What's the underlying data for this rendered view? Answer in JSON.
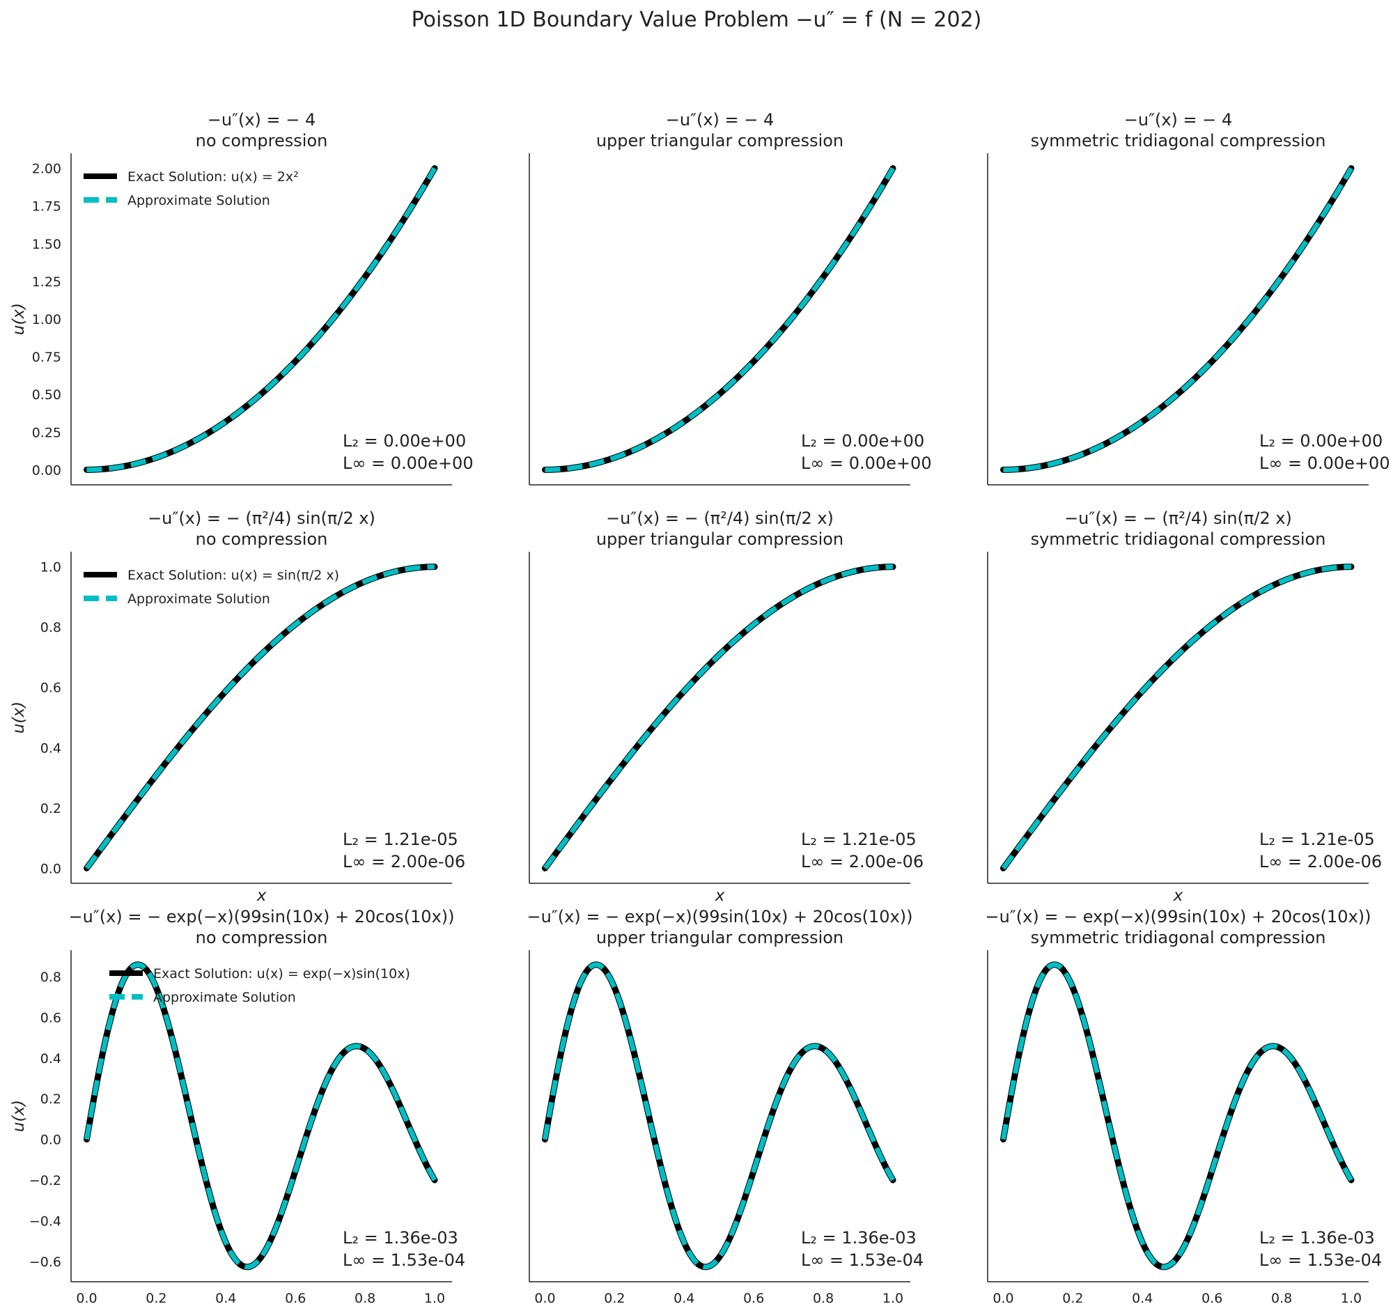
{
  "suptitle": "Poisson 1D Boundary Value Problem −u″ = f (N = 202)",
  "colors": {
    "exact": "#000000",
    "approx": "#00bfc4",
    "axis": "#222222",
    "background": "#ffffff"
  },
  "x_tick_labels": [
    "0.0",
    "0.2",
    "0.4",
    "0.6",
    "0.8",
    "1.0"
  ],
  "chart_data": [
    {
      "type": "line",
      "row": 0,
      "col": 0,
      "title": [
        "−u″(x) = − 4",
        "no compression"
      ],
      "xlabel": "",
      "ylabel": "u(x)",
      "ylim": [
        -0.1,
        2.1
      ],
      "yticks": [
        0,
        0.25,
        0.5,
        0.75,
        1.0,
        1.25,
        1.5,
        1.75,
        2.0
      ],
      "ytick_labels": [
        "0.00",
        "0.25",
        "0.50",
        "0.75",
        "1.00",
        "1.25",
        "1.50",
        "1.75",
        "2.00"
      ],
      "legend": [
        "Exact Solution: u(x) = 2x²",
        "Approximate Solution"
      ],
      "legend_loc": "upper-left",
      "function": "2x^2",
      "errors": [
        "L₂ = 0.00e+00",
        "L∞ = 0.00e+00"
      ],
      "series": [
        {
          "name": "Exact Solution: u(x) = 2x²",
          "style": "solid"
        },
        {
          "name": "Approximate Solution",
          "style": "dashed"
        }
      ]
    },
    {
      "type": "line",
      "row": 0,
      "col": 1,
      "title": [
        "−u″(x) = − 4",
        "upper triangular compression"
      ],
      "xlabel": "",
      "ylabel": "",
      "ylim": [
        -0.1,
        2.1
      ],
      "yticks": [],
      "ytick_labels": [],
      "legend": [],
      "function": "2x^2",
      "errors": [
        "L₂ = 0.00e+00",
        "L∞ = 0.00e+00"
      ],
      "series": [
        {
          "style": "solid"
        },
        {
          "style": "dashed"
        }
      ]
    },
    {
      "type": "line",
      "row": 0,
      "col": 2,
      "title": [
        "−u″(x) = − 4",
        "symmetric tridiagonal compression"
      ],
      "xlabel": "",
      "ylabel": "",
      "ylim": [
        -0.1,
        2.1
      ],
      "yticks": [],
      "ytick_labels": [],
      "legend": [],
      "function": "2x^2",
      "errors": [
        "L₂ = 0.00e+00",
        "L∞ = 0.00e+00"
      ],
      "series": [
        {
          "style": "solid"
        },
        {
          "style": "dashed"
        }
      ]
    },
    {
      "type": "line",
      "row": 1,
      "col": 0,
      "title": [
        "−u″(x) = − (π²/4) sin(π/2 x)",
        "no compression"
      ],
      "xlabel": "x",
      "ylabel": "u(x)",
      "ylim": [
        -0.05,
        1.05
      ],
      "yticks": [
        0,
        0.2,
        0.4,
        0.6,
        0.8,
        1.0
      ],
      "ytick_labels": [
        "0.0",
        "0.2",
        "0.4",
        "0.6",
        "0.8",
        "1.0"
      ],
      "legend": [
        "Exact Solution: u(x) = sin(π/2 x)",
        "Approximate Solution"
      ],
      "legend_loc": "upper-left",
      "function": "sin(pi/2 x)",
      "errors": [
        "L₂ = 1.21e-05",
        "L∞ = 2.00e-06"
      ],
      "series": [
        {
          "name": "Exact Solution: u(x) = sin(π/2 x)",
          "style": "solid"
        },
        {
          "name": "Approximate Solution",
          "style": "dashed"
        }
      ]
    },
    {
      "type": "line",
      "row": 1,
      "col": 1,
      "title": [
        "−u″(x) = − (π²/4) sin(π/2 x)",
        "upper triangular compression"
      ],
      "xlabel": "x",
      "ylabel": "",
      "ylim": [
        -0.05,
        1.05
      ],
      "yticks": [],
      "ytick_labels": [],
      "legend": [],
      "function": "sin(pi/2 x)",
      "errors": [
        "L₂ = 1.21e-05",
        "L∞ = 2.00e-06"
      ],
      "series": [
        {
          "style": "solid"
        },
        {
          "style": "dashed"
        }
      ]
    },
    {
      "type": "line",
      "row": 1,
      "col": 2,
      "title": [
        "−u″(x) = − (π²/4) sin(π/2 x)",
        "symmetric tridiagonal compression"
      ],
      "xlabel": "x",
      "ylabel": "",
      "ylim": [
        -0.05,
        1.05
      ],
      "yticks": [],
      "ytick_labels": [],
      "legend": [],
      "function": "sin(pi/2 x)",
      "errors": [
        "L₂ = 1.21e-05",
        "L∞ = 2.00e-06"
      ],
      "series": [
        {
          "style": "solid"
        },
        {
          "style": "dashed"
        }
      ]
    },
    {
      "type": "line",
      "row": 2,
      "col": 0,
      "title": [
        "−u″(x) = − exp(−x)(99sin(10x) + 20cos(10x))",
        "no compression"
      ],
      "xlabel": "",
      "ylabel": "u(x)",
      "ylim": [
        -0.7,
        0.93
      ],
      "yticks": [
        -0.6,
        -0.4,
        -0.2,
        0,
        0.2,
        0.4,
        0.6,
        0.8
      ],
      "ytick_labels": [
        "−0.6",
        "−0.4",
        "−0.2",
        "0.0",
        "0.2",
        "0.4",
        "0.6",
        "0.8"
      ],
      "legend": [
        "Exact Solution: u(x) = exp(−x)sin(10x)",
        "Approximate Solution"
      ],
      "legend_loc": "upper-left",
      "function": "exp(-x) sin(10x)",
      "errors": [
        "L₂ = 1.36e-03",
        "L∞ = 1.53e-04"
      ],
      "series": [
        {
          "name": "Exact Solution: u(x) = exp(−x)sin(10x)",
          "style": "solid"
        },
        {
          "name": "Approximate Solution",
          "style": "dashed"
        }
      ]
    },
    {
      "type": "line",
      "row": 2,
      "col": 1,
      "title": [
        "−u″(x) = − exp(−x)(99sin(10x) + 20cos(10x))",
        "upper triangular compression"
      ],
      "xlabel": "",
      "ylabel": "",
      "ylim": [
        -0.7,
        0.93
      ],
      "yticks": [],
      "ytick_labels": [],
      "legend": [],
      "function": "exp(-x) sin(10x)",
      "errors": [
        "L₂ = 1.36e-03",
        "L∞ = 1.53e-04"
      ],
      "series": [
        {
          "style": "solid"
        },
        {
          "style": "dashed"
        }
      ]
    },
    {
      "type": "line",
      "row": 2,
      "col": 2,
      "title": [
        "−u″(x) = − exp(−x)(99sin(10x) + 20cos(10x))",
        "symmetric tridiagonal compression"
      ],
      "xlabel": "",
      "ylabel": "",
      "ylim": [
        -0.7,
        0.93
      ],
      "yticks": [],
      "ytick_labels": [],
      "legend": [],
      "function": "exp(-x) sin(10x)",
      "errors": [
        "L₂ = 1.36e-03",
        "L∞ = 1.53e-04"
      ],
      "series": [
        {
          "style": "solid"
        },
        {
          "style": "dashed"
        }
      ]
    }
  ]
}
